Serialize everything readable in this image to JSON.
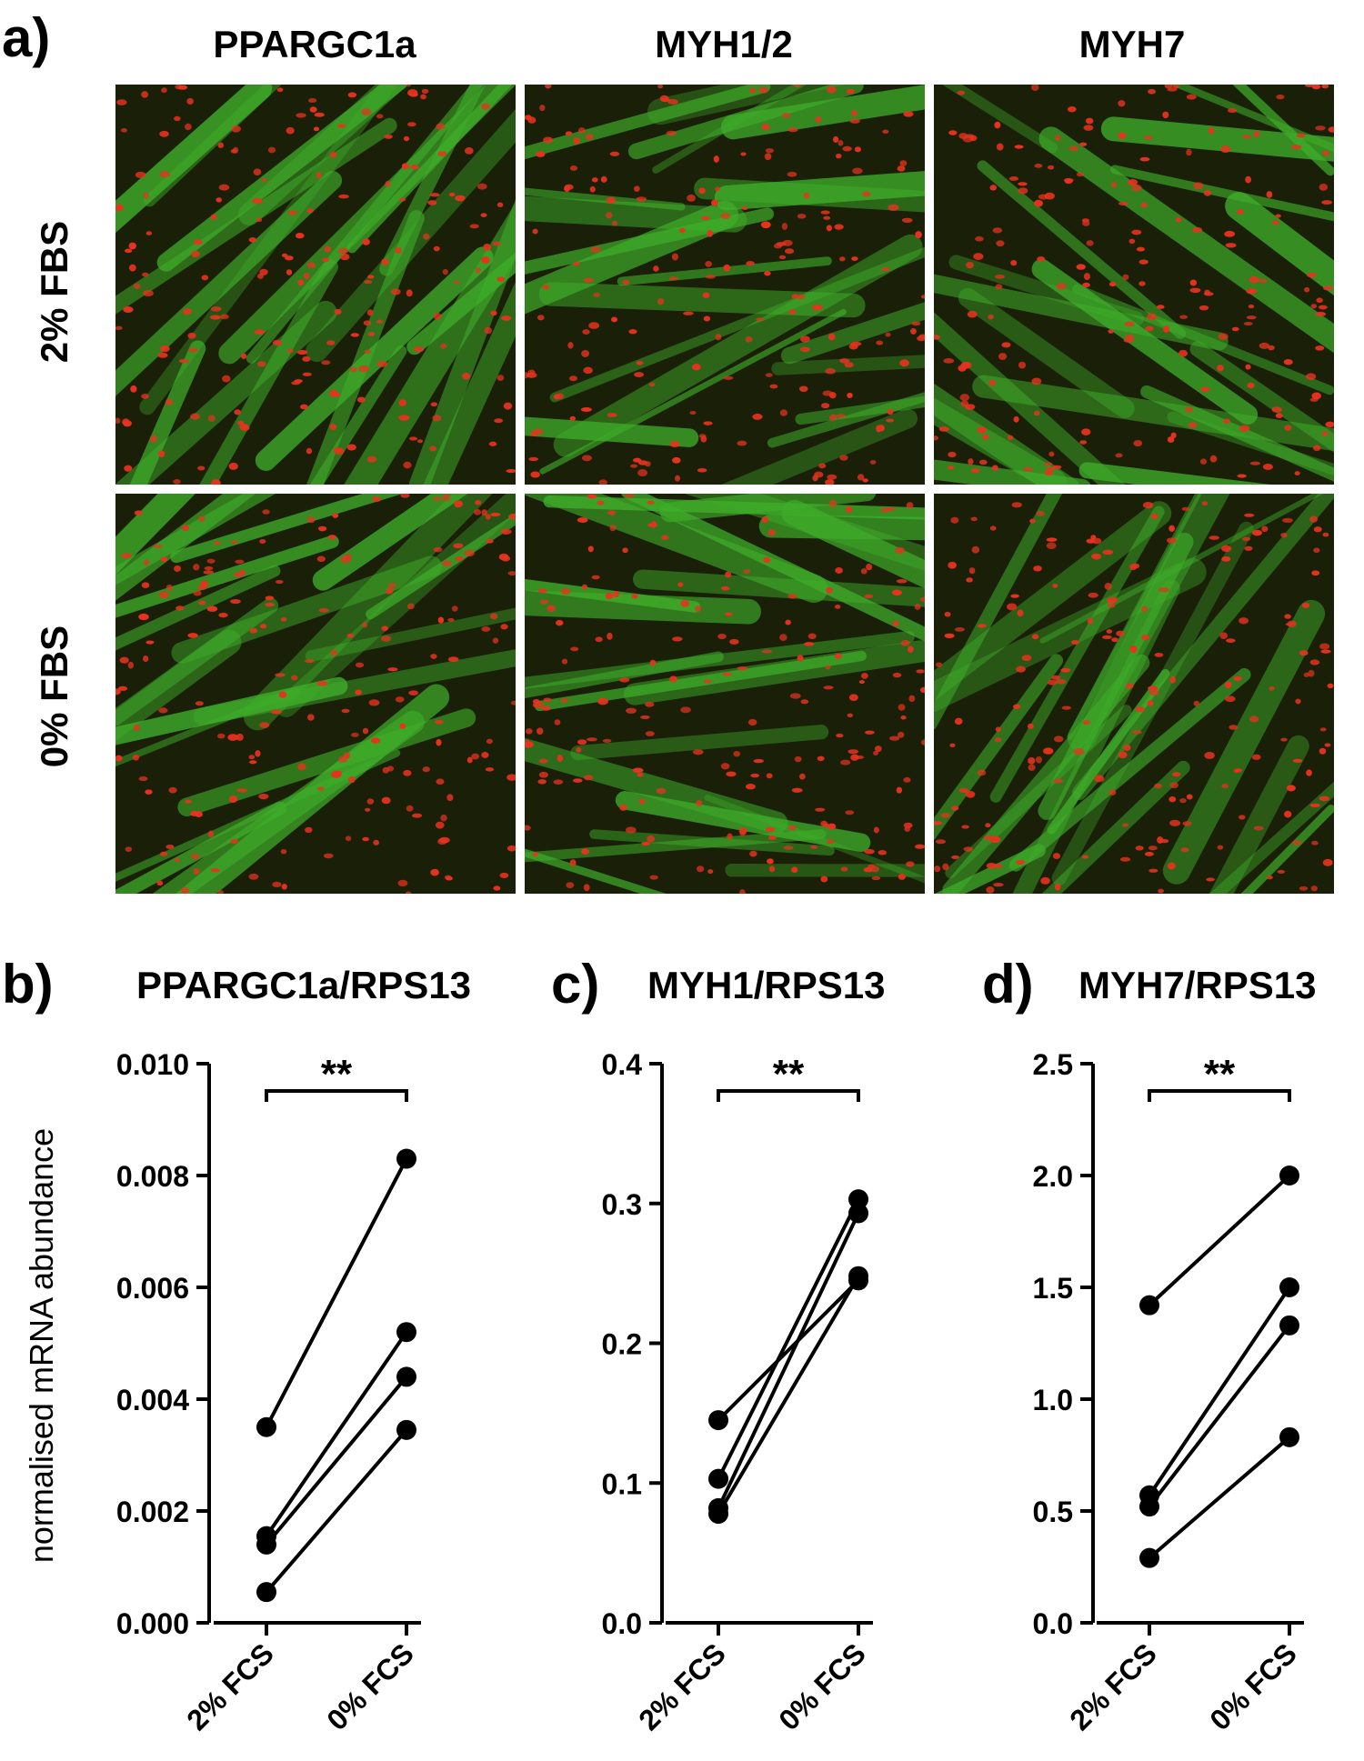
{
  "figure": {
    "panel_a_letter": "a)",
    "column_titles": [
      "PPARGC1a",
      "MYH1/2",
      "MYH7"
    ],
    "row_titles": [
      "2% FBS",
      "0% FBS"
    ],
    "micrographs": [
      {
        "row": "2% FBS",
        "column": "PPARGC1a"
      },
      {
        "row": "2% FBS",
        "column": "MYH1/2"
      },
      {
        "row": "2% FBS",
        "column": "MYH7"
      },
      {
        "row": "0% FBS",
        "column": "PPARGC1a"
      },
      {
        "row": "0% FBS",
        "column": "MYH1/2"
      },
      {
        "row": "0% FBS",
        "column": "MYH7"
      }
    ],
    "colors": {
      "cytoplasm_green": "#3fae2a",
      "nuclei_red": "#e8321e",
      "background_dark": "#1a1f08",
      "ink": "#000000"
    },
    "ylabel": "normalised mRNA abundance"
  },
  "chart_data": [
    {
      "letter": "b)",
      "type": "line",
      "title": "PPARGC1a/RPS13",
      "categories": [
        "2% FCS",
        "0% FCS"
      ],
      "ylim": [
        0,
        0.01
      ],
      "yticks": [
        "0.000",
        "0.002",
        "0.004",
        "0.006",
        "0.008",
        "0.010"
      ],
      "ytick_values": [
        0,
        0.002,
        0.004,
        0.006,
        0.008,
        0.01
      ],
      "significance": "**",
      "pairs": [
        [
          0.0035,
          0.0083
        ],
        [
          0.00155,
          0.0052
        ],
        [
          0.0014,
          0.0044
        ],
        [
          0.00055,
          0.00345
        ]
      ]
    },
    {
      "letter": "c)",
      "type": "line",
      "title": "MYH1/RPS13",
      "categories": [
        "2% FCS",
        "0% FCS"
      ],
      "ylim": [
        0,
        0.4
      ],
      "yticks": [
        "0.0",
        "0.1",
        "0.2",
        "0.3",
        "0.4"
      ],
      "ytick_values": [
        0,
        0.1,
        0.2,
        0.3,
        0.4
      ],
      "significance": "**",
      "pairs": [
        [
          0.145,
          0.245
        ],
        [
          0.103,
          0.303
        ],
        [
          0.082,
          0.293
        ],
        [
          0.078,
          0.248
        ]
      ]
    },
    {
      "letter": "d)",
      "type": "line",
      "title": "MYH7/RPS13",
      "categories": [
        "2% FCS",
        "0% FCS"
      ],
      "ylim": [
        0,
        2.5
      ],
      "yticks": [
        "0.0",
        "0.5",
        "1.0",
        "1.5",
        "2.0",
        "2.5"
      ],
      "ytick_values": [
        0,
        0.5,
        1.0,
        1.5,
        2.0,
        2.5
      ],
      "significance": "**",
      "pairs": [
        [
          1.42,
          2.0
        ],
        [
          0.57,
          1.5
        ],
        [
          0.52,
          1.33
        ],
        [
          0.29,
          0.83
        ]
      ]
    }
  ]
}
